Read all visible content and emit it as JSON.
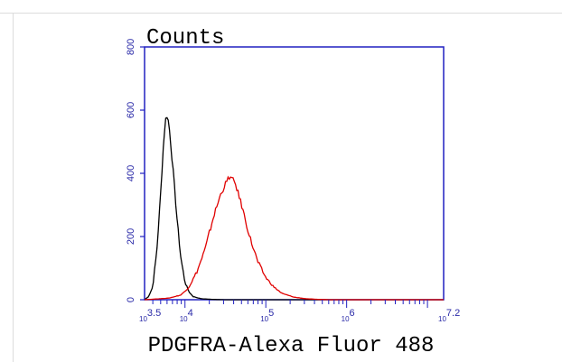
{
  "chart_data": {
    "type": "line",
    "title": "Counts",
    "xlabel": "PDGFRA-Alexa Fluor 488",
    "ylabel": "",
    "x_scale": "log10",
    "xlim": [
      3.5,
      7.2
    ],
    "ylim": [
      0,
      800
    ],
    "y_ticks": [
      "0",
      "200",
      "400",
      "600",
      "800"
    ],
    "x_ticks": [
      {
        "base": "10",
        "exp": "3.5",
        "value": 3.5
      },
      {
        "base": "10",
        "exp": "4",
        "value": 4
      },
      {
        "base": "10",
        "exp": "5",
        "value": 5
      },
      {
        "base": "10",
        "exp": "6",
        "value": 6
      },
      {
        "base": "10",
        "exp": "7.2",
        "value": 7.2
      }
    ],
    "grid": false,
    "series": [
      {
        "color": "#000000",
        "points": [
          [
            3.5,
            0
          ],
          [
            3.55,
            10
          ],
          [
            3.6,
            40
          ],
          [
            3.65,
            150
          ],
          [
            3.7,
            340
          ],
          [
            3.74,
            520
          ],
          [
            3.77,
            590
          ],
          [
            3.8,
            560
          ],
          [
            3.85,
            420
          ],
          [
            3.9,
            260
          ],
          [
            3.95,
            130
          ],
          [
            4.0,
            55
          ],
          [
            4.05,
            25
          ],
          [
            4.1,
            10
          ],
          [
            4.2,
            3
          ],
          [
            4.35,
            1
          ],
          [
            4.5,
            0
          ],
          [
            7.2,
            0
          ]
        ]
      },
      {
        "color": "#e00000",
        "points": [
          [
            3.5,
            0
          ],
          [
            3.8,
            5
          ],
          [
            3.95,
            15
          ],
          [
            4.05,
            40
          ],
          [
            4.15,
            90
          ],
          [
            4.25,
            160
          ],
          [
            4.35,
            260
          ],
          [
            4.45,
            340
          ],
          [
            4.55,
            390
          ],
          [
            4.62,
            370
          ],
          [
            4.7,
            300
          ],
          [
            4.8,
            200
          ],
          [
            4.9,
            120
          ],
          [
            5.0,
            70
          ],
          [
            5.1,
            40
          ],
          [
            5.2,
            20
          ],
          [
            5.35,
            8
          ],
          [
            5.5,
            3
          ],
          [
            5.65,
            1
          ],
          [
            5.8,
            0
          ],
          [
            7.2,
            0
          ]
        ]
      }
    ]
  }
}
